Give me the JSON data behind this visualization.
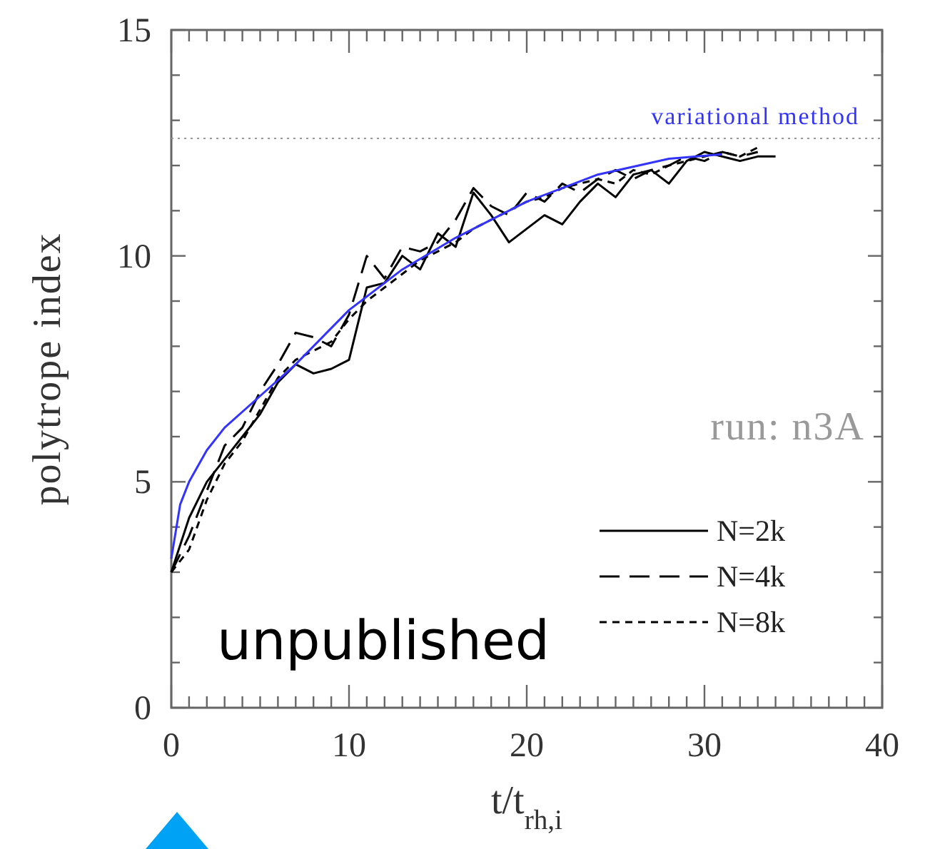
{
  "chart_data": {
    "type": "line",
    "xlabel": "t/t$_{rh,i}$",
    "ylabel": "polytrope index",
    "xlim": [
      0,
      40
    ],
    "ylim": [
      0,
      15
    ],
    "xticks": [
      0,
      {
        "value": 1,
        "label": null
      },
      {
        "value": 2,
        "label": null
      },
      {
        "value": 3,
        "label": null
      },
      {
        "value": 4,
        "label": null
      },
      {
        "value": 5,
        "label": null
      },
      {
        "value": 6,
        "label": null
      },
      {
        "value": 7,
        "label": null
      },
      {
        "value": 8,
        "label": null
      },
      {
        "value": 9,
        "label": null
      },
      10,
      {
        "value": 11,
        "label": null
      },
      {
        "value": 12,
        "label": null
      },
      {
        "value": 13,
        "label": null
      },
      {
        "value": 14,
        "label": null
      },
      {
        "value": 15,
        "label": null
      },
      {
        "value": 16,
        "label": null
      },
      {
        "value": 17,
        "label": null
      },
      {
        "value": 18,
        "label": null
      },
      {
        "value": 19,
        "label": null
      },
      20,
      {
        "value": 21,
        "label": null
      },
      {
        "value": 22,
        "label": null
      },
      {
        "value": 23,
        "label": null
      },
      {
        "value": 24,
        "label": null
      },
      {
        "value": 25,
        "label": null
      },
      {
        "value": 26,
        "label": null
      },
      {
        "value": 27,
        "label": null
      },
      {
        "value": 28,
        "label": null
      },
      {
        "value": 29,
        "label": null
      },
      30,
      {
        "value": 31,
        "label": null
      },
      {
        "value": 32,
        "label": null
      },
      {
        "value": 33,
        "label": null
      },
      {
        "value": 34,
        "label": null
      },
      {
        "value": 35,
        "label": null
      },
      {
        "value": 36,
        "label": null
      },
      {
        "value": 37,
        "label": null
      },
      {
        "value": 38,
        "label": null
      },
      {
        "value": 39,
        "label": null
      },
      40
    ],
    "yticks": [
      0,
      {
        "value": 1,
        "label": null
      },
      {
        "value": 2,
        "label": null
      },
      {
        "value": 3,
        "label": null
      },
      {
        "value": 4,
        "label": null
      },
      5,
      {
        "value": 6,
        "label": null
      },
      {
        "value": 7,
        "label": null
      },
      {
        "value": 8,
        "label": null
      },
      {
        "value": 9,
        "label": null
      },
      10,
      {
        "value": 11,
        "label": null
      },
      {
        "value": 12,
        "label": null
      },
      {
        "value": 13,
        "label": null
      },
      {
        "value": 14,
        "label": null
      },
      15
    ],
    "legend": "bottom right",
    "grid": false,
    "marker": "none",
    "series": [
      {
        "name": "N=2k",
        "color": "#000000",
        "line_style": "solid",
        "x": [
          0,
          1,
          2,
          3,
          4,
          5,
          6,
          7,
          8,
          9,
          10,
          11,
          12,
          13,
          14,
          15,
          16,
          17,
          18,
          19,
          20,
          21,
          22,
          23,
          24,
          25,
          26,
          27,
          28,
          29,
          30,
          31,
          32,
          33,
          34
        ],
        "values": [
          3.0,
          4.2,
          5.0,
          5.5,
          6.0,
          6.5,
          7.2,
          7.6,
          7.4,
          7.5,
          7.7,
          9.3,
          9.4,
          10.0,
          9.7,
          10.5,
          10.2,
          11.4,
          10.9,
          10.3,
          10.6,
          10.9,
          10.7,
          11.2,
          11.6,
          11.3,
          11.8,
          11.9,
          11.6,
          12.1,
          12.3,
          12.2,
          12.1,
          12.2,
          12.2
        ]
      },
      {
        "name": "N=4k",
        "color": "#000000",
        "line_style": "dashed",
        "x": [
          0,
          1,
          2,
          3,
          4,
          5,
          6,
          7,
          8,
          9,
          10,
          11,
          12,
          13,
          14,
          15,
          16,
          17,
          18,
          19,
          20,
          21,
          22,
          23,
          24,
          25,
          26,
          27,
          28,
          29,
          30,
          31,
          32,
          33
        ],
        "values": [
          3.0,
          3.8,
          4.8,
          5.8,
          6.2,
          7.0,
          7.6,
          8.3,
          8.2,
          8.0,
          8.7,
          10.0,
          9.5,
          10.2,
          10.1,
          10.3,
          10.8,
          11.5,
          11.1,
          10.9,
          11.4,
          11.2,
          11.6,
          11.4,
          11.7,
          11.9,
          11.7,
          11.9,
          12.0,
          12.2,
          12.1,
          12.3,
          12.2,
          12.3
        ]
      },
      {
        "name": "N=8k",
        "color": "#000000",
        "line_style": "dotted",
        "x": [
          0,
          1,
          2,
          3,
          4,
          5,
          6,
          7,
          8,
          9,
          10,
          11,
          12,
          13,
          14,
          15,
          16,
          17,
          18,
          19,
          20,
          21,
          22,
          23,
          24,
          25,
          26,
          27,
          28,
          29,
          30,
          31,
          32,
          33
        ],
        "values": [
          3.0,
          3.5,
          4.6,
          5.4,
          5.9,
          6.6,
          7.3,
          7.7,
          7.9,
          8.1,
          8.6,
          9.0,
          9.3,
          9.6,
          9.9,
          10.1,
          10.3,
          10.6,
          10.8,
          11.0,
          11.2,
          11.3,
          11.5,
          11.6,
          11.7,
          11.6,
          11.9,
          11.8,
          12.0,
          12.1,
          12.2,
          12.3,
          12.2,
          12.4
        ]
      },
      {
        "color": "#3333ff",
        "line_style": "solid",
        "x": [
          0,
          0.5,
          1,
          2,
          3,
          5,
          7,
          10,
          13,
          16,
          20,
          24,
          28,
          31
        ],
        "values": [
          3.3,
          4.5,
          5.0,
          5.7,
          6.2,
          6.9,
          7.6,
          8.8,
          9.7,
          10.4,
          11.2,
          11.8,
          12.15,
          12.25
        ]
      }
    ],
    "ref_lines": [
      {
        "axis": "y",
        "value": 12.6,
        "label": "variational method",
        "color": "#999999",
        "line_style": "dotted"
      }
    ],
    "annotations": [
      "run: n3A",
      "unpublished"
    ]
  }
}
